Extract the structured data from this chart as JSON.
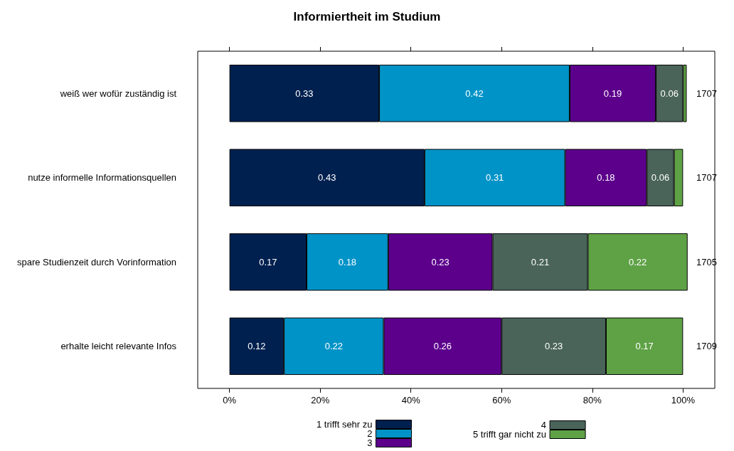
{
  "chart_data": {
    "type": "bar",
    "title": "Informiertheit im Studium",
    "orientation": "horizontal",
    "stacked": true,
    "legend": "bottom",
    "categories": [
      "weiß wer wofür zuständig ist",
      "nutze informelle Informationsquellen",
      "spare Studienzeit durch Vorinformation",
      "erhalte leicht relevante Infos"
    ],
    "series": [
      {
        "name": "1 trifft sehr zu",
        "color": "#00204f",
        "values": [
          0.33,
          0.43,
          0.17,
          0.12
        ],
        "value_labels": [
          "0.33",
          "0.43",
          "0.17",
          "0.12"
        ]
      },
      {
        "name": "2",
        "color": "#0093c7",
        "values": [
          0.42,
          0.31,
          0.18,
          0.22
        ],
        "value_labels": [
          "0.42",
          "0.31",
          "0.18",
          "0.22"
        ]
      },
      {
        "name": "3",
        "color": "#5c008c",
        "values": [
          0.19,
          0.18,
          0.23,
          0.26
        ],
        "value_labels": [
          "0.19",
          "0.18",
          "0.23",
          "0.26"
        ]
      },
      {
        "name": "4",
        "color": "#4a645a",
        "values": [
          0.06,
          0.06,
          0.21,
          0.23
        ],
        "value_labels": [
          "0.06",
          "0.06",
          "0.21",
          "0.23"
        ]
      },
      {
        "name": "5 trifft gar nicht zu",
        "color": "#5fa246",
        "values": [
          0.008,
          0.02,
          0.22,
          0.17
        ],
        "value_labels": [
          null,
          null,
          "0.22",
          "0.17"
        ]
      }
    ],
    "xlim": [
      -0.07,
      1.07
    ],
    "xticks": [
      {
        "value": 0,
        "label": "0%"
      },
      {
        "value": 0.2,
        "label": "20%"
      },
      {
        "value": 0.4,
        "label": "40%"
      },
      {
        "value": 0.6,
        "label": "60%"
      },
      {
        "value": 0.8,
        "label": "80%"
      },
      {
        "value": 1,
        "label": "100%"
      }
    ],
    "annotations": [
      "1707",
      "1707",
      "1705",
      "1709"
    ]
  }
}
